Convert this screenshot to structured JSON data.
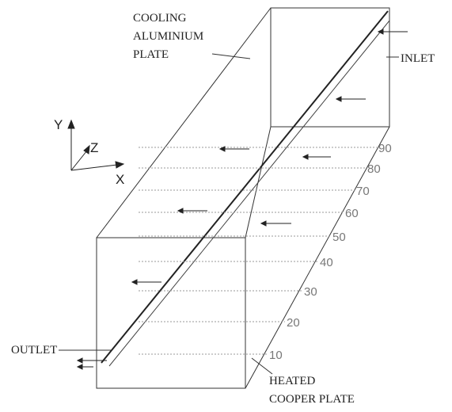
{
  "labels": {
    "cooling": [
      "COOLING",
      "ALUMINIUM",
      "PLATE"
    ],
    "inlet": "INLET",
    "outlet": "OUTLET",
    "heated": [
      "HEATED",
      "COOPER PLATE"
    ]
  },
  "axes": {
    "y": "Y",
    "z": "Z",
    "x": "X"
  },
  "scale": [
    "10",
    "20",
    "30",
    "40",
    "50",
    "60",
    "70",
    "80",
    "90"
  ]
}
